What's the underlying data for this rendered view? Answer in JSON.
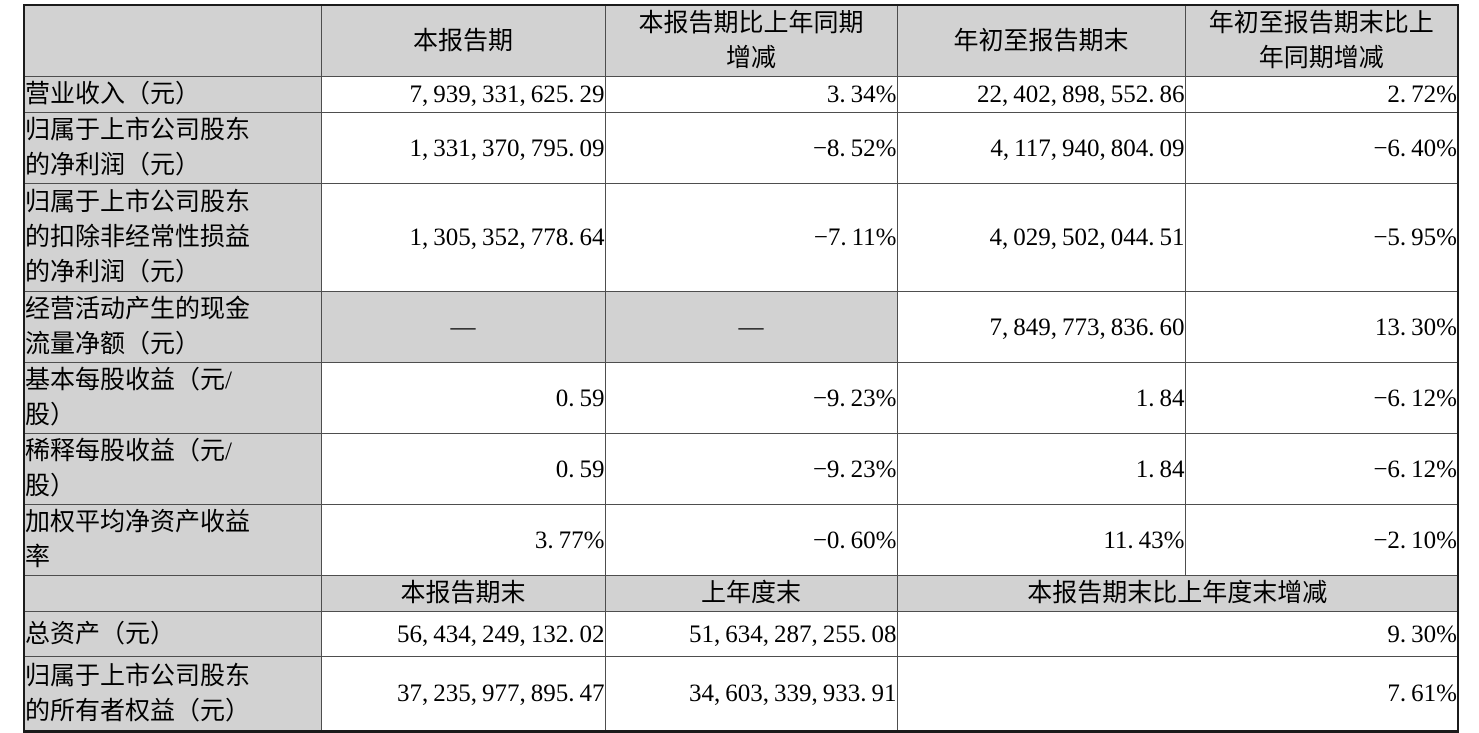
{
  "colors": {
    "cell_shade": "#d2d2d2",
    "grid_line": "#4e4e4e",
    "outer_border": "#1b1b1b",
    "text": "#000000",
    "background": "#ffffff"
  },
  "table": {
    "header_row_1": {
      "corner": "",
      "current_period": "本报告期",
      "current_period_yoy": "本报告期比上年同期\n增减",
      "ytd": "年初至报告期末",
      "ytd_yoy": "年初至报告期末比上\n年同期增减"
    },
    "rows_current_period": [
      {
        "label": "营业收入（元）",
        "current_period": "7,939,331,625.29",
        "yoy_change": "3.34%",
        "ytd": "22,402,898,552.86",
        "ytd_yoy_change": "2.72%"
      },
      {
        "label": "归属于上市公司股东\n的净利润（元）",
        "current_period": "1,331,370,795.09",
        "yoy_change": "-8.52%",
        "ytd": "4,117,940,804.09",
        "ytd_yoy_change": "-6.40%"
      },
      {
        "label": "归属于上市公司股东\n的扣除非经常性损益\n的净利润（元）",
        "current_period": "1,305,352,778.64",
        "yoy_change": "-7.11%",
        "ytd": "4,029,502,044.51",
        "ytd_yoy_change": "-5.95%"
      },
      {
        "label": "经营活动产生的现金\n流量净额（元）",
        "current_period": "—",
        "yoy_change": "—",
        "ytd": "7,849,773,836.60",
        "ytd_yoy_change": "13.30%"
      },
      {
        "label": "基本每股收益（元/\n股）",
        "current_period": "0.59",
        "yoy_change": "-9.23%",
        "ytd": "1.84",
        "ytd_yoy_change": "-6.12%"
      },
      {
        "label": "稀释每股收益（元/\n股）",
        "current_period": "0.59",
        "yoy_change": "-9.23%",
        "ytd": "1.84",
        "ytd_yoy_change": "-6.12%"
      },
      {
        "label": "加权平均净资产收益\n率",
        "current_period": "3.77%",
        "yoy_change": "-0.60%",
        "ytd": "11.43%",
        "ytd_yoy_change": "-2.10%"
      }
    ],
    "header_row_2": {
      "corner": "",
      "period_end": "本报告期末",
      "prior_year_end": "上年度末",
      "period_end_change": "本报告期末比上年度末增减"
    },
    "rows_period_end": [
      {
        "label": "总资产（元）",
        "period_end": "56,434,249,132.02",
        "prior_year_end": "51,634,287,255.08",
        "change": "9.30%"
      },
      {
        "label": "归属于上市公司股东\n的所有者权益（元）",
        "period_end": "37,235,977,895.47",
        "prior_year_end": "34,603,339,933.91",
        "change": "7.61%"
      }
    ]
  }
}
